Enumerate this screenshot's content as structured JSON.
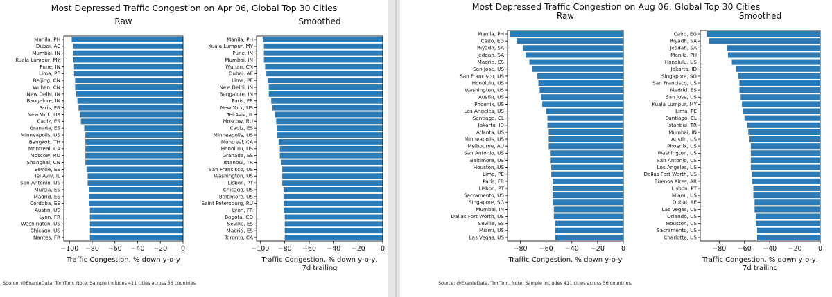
{
  "colors": {
    "bar": "#2c7bb6",
    "axis": "#000000",
    "text": "#111111"
  },
  "figures": [
    {
      "title": "Most Depressed Traffic Congestion on Apr 06, Global Top 30 Cities",
      "note": "Source: @ExanteData, TomTom.    Note: Sample includes 411 cities across 56 countries."
    },
    {
      "title": "Most Depressed Traffic Congestion on Aug 06, Global Top 30 Cities",
      "note": "Source: @ExanteData, TomTom.    Note: Sample includes 411 cities across 56 countries."
    }
  ],
  "chart_data": [
    {
      "type": "bar",
      "orientation": "horizontal",
      "title": "Raw",
      "xlabel": "Traffic Congestion, % down y-o-y",
      "xlabel2": "",
      "xlim": [
        -105,
        0
      ],
      "xticks": [
        -100,
        -80,
        -60,
        -40,
        -20,
        0
      ],
      "categories": [
        "Manila, PH",
        "Dubai, AE",
        "Mumbai, IN",
        "Kuala Lumpur, MY",
        "Pune, IN",
        "Lima, PE",
        "Beijing, CN",
        "Wuhan, CN",
        "New Delhi, IN",
        "Bangalore, IN",
        "Paris, FR",
        "New York, US",
        "Cadiz, ES",
        "Granada, ES",
        "Minneapolis, US",
        "Bangkok, TH",
        "Montreal, CA",
        "Moscow, RU",
        "Shanghai, CN",
        "Seville, ES",
        "Tel Aviv, IL",
        "San Antonio, US",
        "Murcia, ES",
        "Madrid, ES",
        "Cordoba, ES",
        "Austin, US",
        "Lyon, FR",
        "Washington, US",
        "Chicago, US",
        "Nantes, FR"
      ],
      "values": [
        -98,
        -97,
        -97,
        -97,
        -96,
        -96,
        -95,
        -95,
        -94,
        -93,
        -92,
        -91,
        -90,
        -87,
        -86,
        -86,
        -86,
        -86,
        -86,
        -85,
        -84,
        -84,
        -83,
        -83,
        -83,
        -82,
        -82,
        -82,
        -82,
        -82
      ]
    },
    {
      "type": "bar",
      "orientation": "horizontal",
      "title": "Smoothed",
      "xlabel": "Traffic Congestion, % down y-o-y,",
      "xlabel2": "7d trailing",
      "xlim": [
        -103,
        0
      ],
      "xticks": [
        -100,
        -80,
        -60,
        -40,
        -20,
        0
      ],
      "categories": [
        "Manila, PH",
        "Kuala Lumpur, MY",
        "Pune, IN",
        "Mumbai, IN",
        "Wuhan, CN",
        "Dubai, AE",
        "Lima, PE",
        "New Delhi, IN",
        "Bangalore, IN",
        "Paris, FR",
        "New York, US",
        "Tel Aviv, IL",
        "Moscow, RU",
        "Cadiz, ES",
        "Minneapolis, US",
        "Montreal, CA",
        "Honolulu, US",
        "Granada, ES",
        "Istanbul, TR",
        "San Francisco, US",
        "Washington, US",
        "Lisbon, PT",
        "Chicago, US",
        "Baltimore, US",
        "Saint Petersburg, RU",
        "Lyon, FR",
        "Bogota, CO",
        "Seville, ES",
        "Madrid, ES",
        "Toronto, CA"
      ],
      "values": [
        -98,
        -97,
        -97,
        -97,
        -96,
        -95,
        -94,
        -93,
        -93,
        -91,
        -90,
        -88,
        -87,
        -86,
        -86,
        -85,
        -84,
        -84,
        -83,
        -82,
        -82,
        -82,
        -81,
        -81,
        -81,
        -81,
        -80,
        -80,
        -80,
        -80
      ]
    },
    {
      "type": "bar",
      "orientation": "horizontal",
      "title": "Raw",
      "xlabel": "Traffic Congestion, % down y-o-y",
      "xlabel2": "",
      "xlim": [
        -90,
        0
      ],
      "xticks": [
        -80,
        -60,
        -40,
        -20,
        0
      ],
      "categories": [
        "Manila, PH",
        "Cairo, EG",
        "Riyadh, SA",
        "Jeddah, SA",
        "Madrid, ES",
        "San Jose, US",
        "San Francisco, US",
        "Honolulu, US",
        "Washington, US",
        "Austin, US",
        "Phoenix, US",
        "Los Angeles, US",
        "Santiago, CL",
        "Jakarta, ID",
        "Atlanta, US",
        "Minneapolis, US",
        "Melbourne, AU",
        "San Antonio, US",
        "Baltimore, US",
        "Houston, US",
        "Lima, PE",
        "Paris, FR",
        "Lisbon, PT",
        "Sacramento, US",
        "Singapore, SG",
        "Mumbai, IN",
        "Dallas Fort Worth, US",
        "Seville, ES",
        "Miami, US",
        "Las Vegas, US"
      ],
      "values": [
        -88,
        -83,
        -78,
        -76,
        -73,
        -71,
        -67,
        -66,
        -65,
        -64,
        -63,
        -60,
        -59,
        -59,
        -58,
        -58,
        -58,
        -57,
        -57,
        -56,
        -56,
        -55,
        -55,
        -55,
        -55,
        -54,
        -54,
        -53,
        -53,
        -53
      ]
    },
    {
      "type": "bar",
      "orientation": "horizontal",
      "title": "Smoothed",
      "xlabel": "Traffic Congestion, % down y-o-y,",
      "xlabel2": "7d trailing",
      "xlim": [
        -95,
        0
      ],
      "xticks": [
        -80,
        -60,
        -40,
        -20,
        0
      ],
      "categories": [
        "Cairo, EG",
        "Riyadh, SA",
        "Jeddah, SA",
        "Manila, PH",
        "Honolulu, US",
        "Jakarta, ID",
        "Singapore, SG",
        "San Francisco, US",
        "Madrid, ES",
        "San Jose, US",
        "Kuala Lumpur, MY",
        "Lima, PE",
        "Santiago, CL",
        "Istanbul, TR",
        "Mumbai, IN",
        "Austin, US",
        "Phoenix, US",
        "Washington, US",
        "San Antonio, US",
        "Los Angeles, US",
        "Dallas Fort Worth, US",
        "Buenos Aires, AR",
        "Lisbon, PT",
        "Miami, US",
        "Dubai, AE",
        "Las Vegas, US",
        "Orlando, US",
        "Houston, US",
        "Sacramento, US",
        "Charlotte, US"
      ],
      "values": [
        -90,
        -88,
        -74,
        -73,
        -70,
        -67,
        -65,
        -64,
        -64,
        -63,
        -62,
        -61,
        -60,
        -58,
        -57,
        -56,
        -55,
        -55,
        -55,
        -55,
        -54,
        -54,
        -53,
        -53,
        -52,
        -52,
        -51,
        -51,
        -50,
        -50
      ]
    }
  ]
}
